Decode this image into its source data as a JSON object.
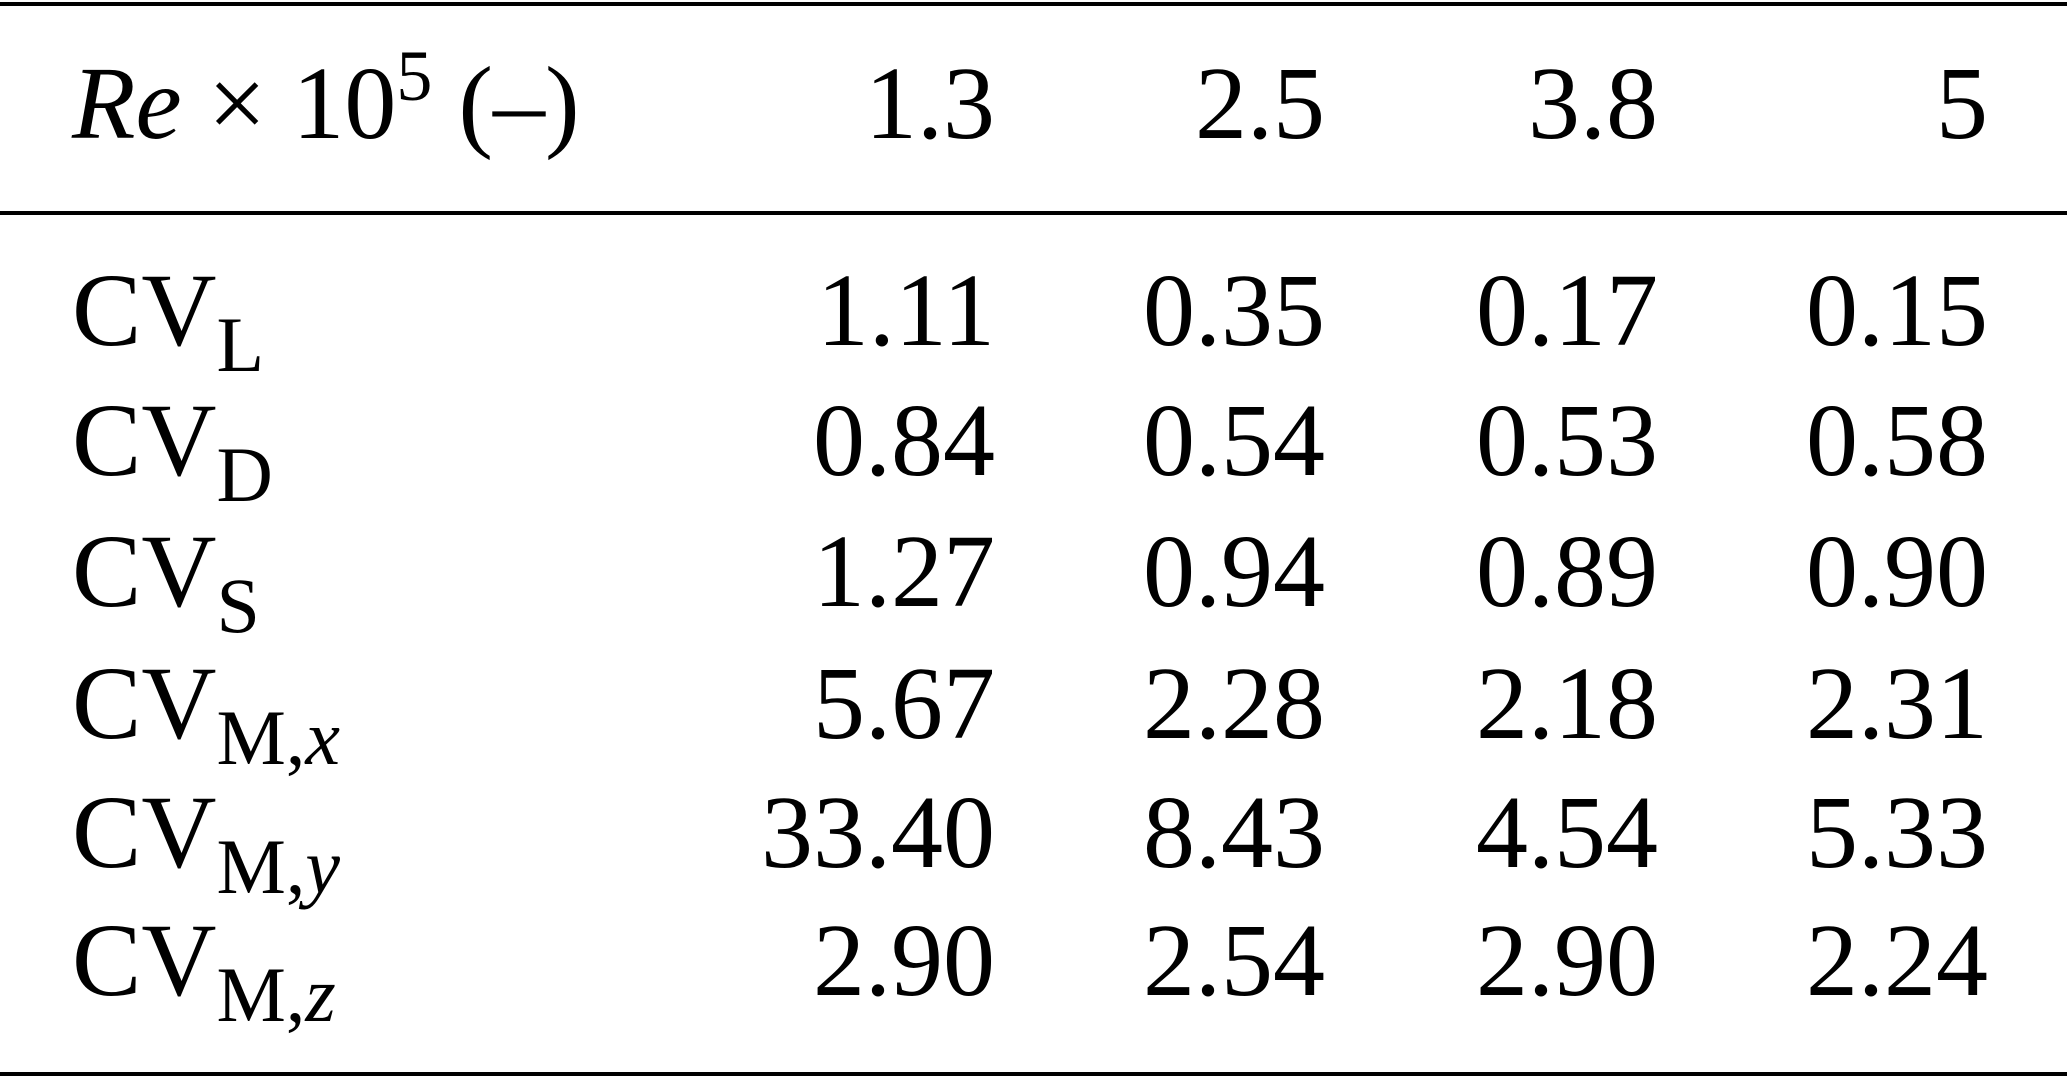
{
  "table": {
    "header": {
      "label": {
        "italic": "Re",
        "text": " × 10",
        "sup": "5",
        "unit": " (–)"
      },
      "columns": [
        "1.3",
        "2.5",
        "3.8",
        "5"
      ]
    },
    "rows": [
      {
        "label": {
          "base": "CV",
          "sub": "L"
        },
        "cells": [
          "1.11",
          "0.35",
          "0.17",
          "0.15"
        ]
      },
      {
        "label": {
          "base": "CV",
          "sub": "D"
        },
        "cells": [
          "0.84",
          "0.54",
          "0.53",
          "0.58"
        ]
      },
      {
        "label": {
          "base": "CV",
          "sub": "S"
        },
        "cells": [
          "1.27",
          "0.94",
          "0.89",
          "0.90"
        ]
      },
      {
        "label": {
          "base": "CV",
          "sub": "M,",
          "sub_italic": "x"
        },
        "cells": [
          "5.67",
          "2.28",
          "2.18",
          "2.31"
        ]
      },
      {
        "label": {
          "base": "CV",
          "sub": "M,",
          "sub_italic": "y"
        },
        "cells": [
          "33.40",
          "8.43",
          "4.54",
          "5.33"
        ]
      },
      {
        "label": {
          "base": "CV",
          "sub": "M,",
          "sub_italic": "z"
        },
        "cells": [
          "2.90",
          "2.54",
          "2.90",
          "2.24"
        ]
      }
    ]
  }
}
